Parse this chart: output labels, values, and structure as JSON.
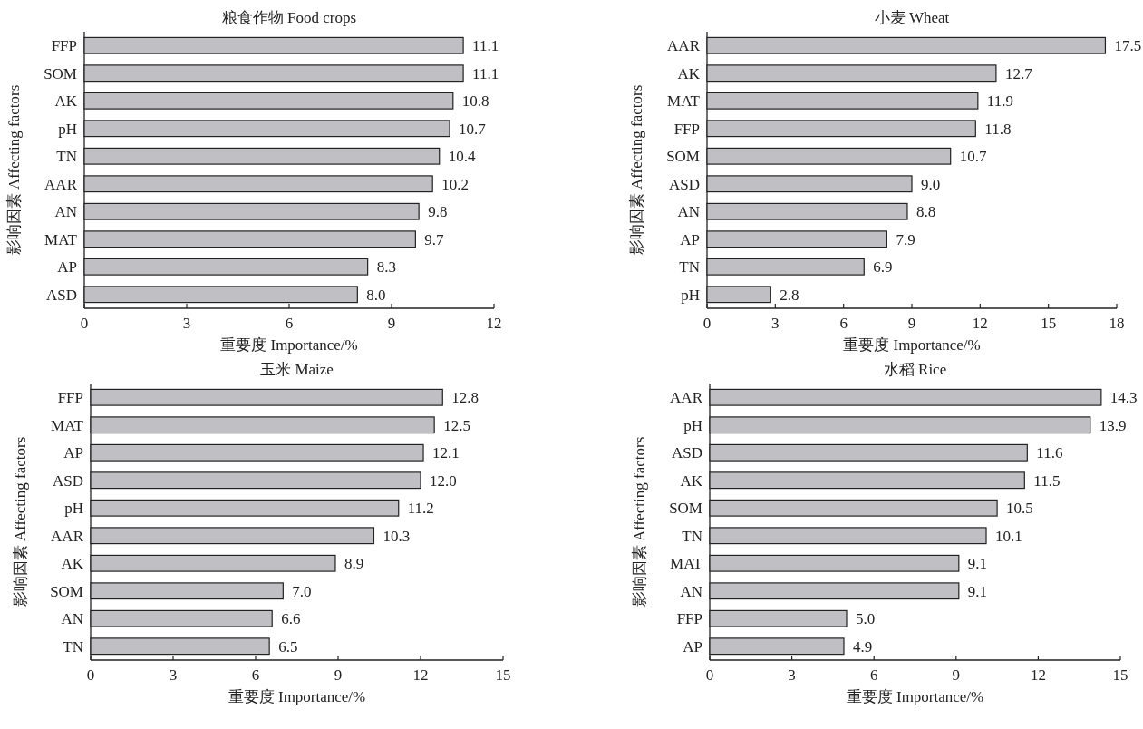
{
  "chart_data": [
    {
      "type": "bar",
      "orientation": "horizontal",
      "title": "粮食作物 Food crops",
      "xlabel": "重要度 Importance/%",
      "ylabel": "影响因素 Affecting factors",
      "color": "#c0c0c4",
      "categories": [
        "FFP",
        "SOM",
        "AK",
        "pH",
        "TN",
        "AAR",
        "AN",
        "MAT",
        "AP",
        "ASD"
      ],
      "values": [
        11.1,
        11.1,
        10.8,
        10.7,
        10.4,
        10.2,
        9.8,
        9.7,
        8.3,
        8.0
      ],
      "value_labels": [
        "11.1",
        "11.1",
        "10.8",
        "10.7",
        "10.4",
        "10.2",
        "9.8",
        "9.7",
        "8.3",
        "8.0"
      ],
      "xlim": [
        0,
        12
      ],
      "xticks": [
        0,
        3,
        6,
        9,
        12
      ]
    },
    {
      "type": "bar",
      "orientation": "horizontal",
      "title": "小麦 Wheat",
      "xlabel": "重要度 Importance/%",
      "ylabel": "影响因素 Affecting factors",
      "color": "#c0c0c4",
      "categories": [
        "AAR",
        "AK",
        "MAT",
        "FFP",
        "SOM",
        "ASD",
        "AN",
        "AP",
        "TN",
        "pH"
      ],
      "values": [
        17.5,
        12.7,
        11.9,
        11.8,
        10.7,
        9.0,
        8.8,
        7.9,
        6.9,
        2.8
      ],
      "value_labels": [
        "17.5",
        "12.7",
        "11.9",
        "11.8",
        "10.7",
        "9.0",
        "8.8",
        "7.9",
        "6.9",
        "2.8"
      ],
      "xlim": [
        0,
        18
      ],
      "xticks": [
        0,
        3,
        6,
        9,
        12,
        15,
        18
      ]
    },
    {
      "type": "bar",
      "orientation": "horizontal",
      "title": "玉米 Maize",
      "xlabel": "重要度 Importance/%",
      "ylabel": "影响因素 Affecting factors",
      "color": "#c0c0c4",
      "categories": [
        "FFP",
        "MAT",
        "AP",
        "ASD",
        "pH",
        "AAR",
        "AK",
        "SOM",
        "AN",
        "TN"
      ],
      "values": [
        12.8,
        12.5,
        12.1,
        12.0,
        11.2,
        10.3,
        8.9,
        7.0,
        6.6,
        6.5
      ],
      "value_labels": [
        "12.8",
        "12.5",
        "12.1",
        "12.0",
        "11.2",
        "10.3",
        "8.9",
        "7.0",
        "6.6",
        "6.5"
      ],
      "xlim": [
        0,
        15
      ],
      "xticks": [
        0,
        3,
        6,
        9,
        12,
        15
      ]
    },
    {
      "type": "bar",
      "orientation": "horizontal",
      "title": "水稻 Rice",
      "xlabel": "重要度 Importance/%",
      "ylabel": "影响因素 Affecting factors",
      "color": "#c0c0c4",
      "categories": [
        "AAR",
        "pH",
        "ASD",
        "AK",
        "SOM",
        "TN",
        "MAT",
        "AN",
        "FFP",
        "AP"
      ],
      "values": [
        14.3,
        13.9,
        11.6,
        11.5,
        10.5,
        10.1,
        9.1,
        9.1,
        5.0,
        4.9
      ],
      "value_labels": [
        "14.3",
        "13.9",
        "11.6",
        "11.5",
        "10.5",
        "10.1",
        "9.1",
        "9.1",
        "5.0",
        "4.9"
      ],
      "xlim": [
        0,
        15
      ],
      "xticks": [
        0,
        3,
        6,
        9,
        12,
        15
      ]
    }
  ]
}
